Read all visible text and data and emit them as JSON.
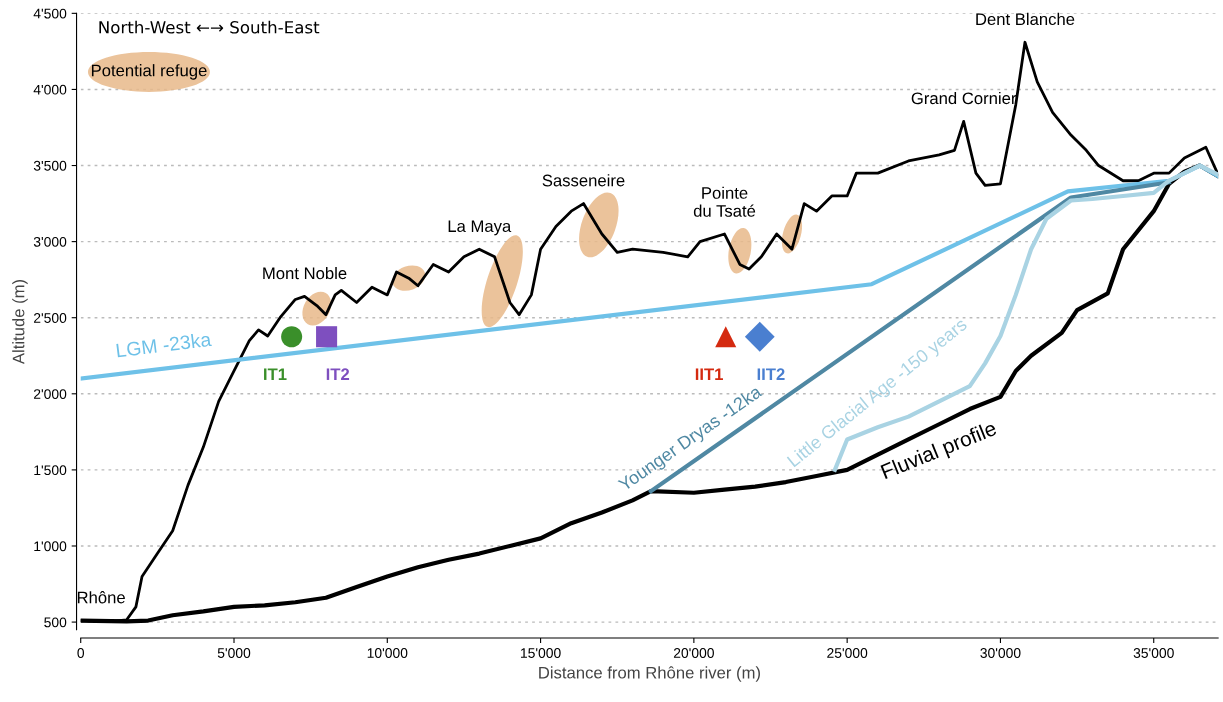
{
  "chart_data": {
    "type": "line",
    "xlabel": "Distance from Rhône river (m)",
    "ylabel": "Altitude (m)",
    "xlim": [
      0,
      37100
    ],
    "ylim": [
      450,
      4500
    ],
    "xticks": [
      0,
      {
        "value": 5000,
        "label": "5'000"
      },
      {
        "value": 10000,
        "label": "10'000"
      },
      {
        "value": 15000,
        "label": "15'000"
      },
      {
        "value": 20000,
        "label": "20'000"
      },
      {
        "value": 25000,
        "label": "25'000"
      },
      {
        "value": 30000,
        "label": "30'000"
      },
      {
        "value": 35000,
        "label": "35'000"
      }
    ],
    "yticks": [
      500,
      {
        "value": 1000,
        "label": "1'000"
      },
      {
        "value": 1500,
        "label": "1'500"
      },
      {
        "value": 2000,
        "label": "2'000"
      },
      {
        "value": 2500,
        "label": "2'500"
      },
      {
        "value": 3000,
        "label": "3'000"
      },
      {
        "value": 3500,
        "label": "3'500"
      },
      {
        "value": 4000,
        "label": "4'000"
      },
      {
        "value": 4500,
        "label": "4'500"
      }
    ],
    "grid": "y",
    "legend": false,
    "series": [
      {
        "color": "#000000",
        "x": [
          0,
          1000,
          1500,
          1800,
          2000,
          2500,
          3000,
          3500,
          4000,
          4500,
          5000,
          5500,
          5800,
          6100,
          6500,
          7000,
          7300,
          7700,
          8000,
          8300,
          8500,
          9000,
          9500,
          10000,
          10300,
          10700,
          11000,
          11500,
          12000,
          12500,
          13000,
          13500,
          14000,
          14300,
          14700,
          15000,
          15500,
          16000,
          16400,
          17000,
          17500,
          18000,
          19000,
          19800,
          20200,
          21000,
          21500,
          21800,
          22200,
          22700,
          23200,
          23600,
          24000,
          24500,
          25000,
          25300,
          26000,
          27000,
          28000,
          28500,
          28800,
          29200,
          29500,
          30000,
          30500,
          30800,
          31200,
          31700,
          32300,
          32800,
          33200,
          34000,
          34500,
          35000,
          35500,
          36000,
          36700,
          37100
        ],
        "values": [
          510,
          505,
          515,
          600,
          800,
          950,
          1100,
          1400,
          1650,
          1950,
          2150,
          2350,
          2420,
          2380,
          2500,
          2620,
          2640,
          2580,
          2520,
          2650,
          2680,
          2600,
          2700,
          2650,
          2800,
          2760,
          2710,
          2850,
          2800,
          2900,
          2950,
          2900,
          2600,
          2520,
          2650,
          2950,
          3100,
          3200,
          3250,
          3050,
          2930,
          2950,
          2930,
          2900,
          3000,
          3050,
          2850,
          2820,
          2900,
          3050,
          2950,
          3250,
          3200,
          3300,
          3300,
          3450,
          3450,
          3530,
          3570,
          3600,
          3790,
          3450,
          3370,
          3380,
          3900,
          4310,
          4050,
          3850,
          3700,
          3600,
          3500,
          3400,
          3400,
          3450,
          3450,
          3550,
          3620,
          3440
        ]
      },
      {
        "name": "Fluvial profile",
        "color": "#000000",
        "x": [
          0,
          1500,
          2200,
          3000,
          4000,
          5000,
          6000,
          7000,
          8000,
          9000,
          10000,
          11000,
          12000,
          13000,
          14000,
          15000,
          16000,
          17000,
          18000,
          18600,
          20000,
          21000,
          22000,
          23000,
          24000,
          25000,
          26000,
          27000,
          28000,
          29000,
          30000,
          30500,
          31000,
          32000,
          32500,
          33500,
          34000,
          35000,
          35500,
          36000,
          36500,
          37100
        ],
        "values": [
          510,
          505,
          510,
          545,
          570,
          600,
          610,
          630,
          660,
          730,
          800,
          860,
          910,
          950,
          1000,
          1050,
          1150,
          1220,
          1300,
          1360,
          1350,
          1370,
          1390,
          1420,
          1460,
          1500,
          1600,
          1700,
          1800,
          1900,
          1980,
          2150,
          2250,
          2400,
          2550,
          2660,
          2950,
          3200,
          3380,
          3460,
          3500,
          3430
        ]
      },
      {
        "name": "LGM -23ka",
        "color": "#6ec1e8",
        "x": [
          0,
          25800,
          32200,
          35500,
          36500,
          37100
        ],
        "values": [
          2100,
          2720,
          3330,
          3400,
          3500,
          3430
        ]
      },
      {
        "name": "Younger Dryas -12ka",
        "color": "#4f88a3",
        "x": [
          18600,
          32300,
          35500
        ],
        "values": [
          1360,
          3290,
          3390
        ]
      },
      {
        "name": "Little Glacial Age -150 years",
        "color": "#a9d3e3",
        "x": [
          24600,
          25000,
          26000,
          27000,
          28000,
          29000,
          29500,
          30000,
          30500,
          31000,
          31500,
          32300,
          33000,
          34000,
          35000,
          35500,
          36500,
          37100
        ],
        "values": [
          1500,
          1700,
          1780,
          1850,
          1950,
          2050,
          2200,
          2380,
          2650,
          2950,
          3150,
          3270,
          3280,
          3300,
          3320,
          3400,
          3500,
          3440
        ]
      },
      {
        "name": "IT1",
        "type": "scatter",
        "marker": "circle",
        "color": "#3a8f2a",
        "x": [
          6880
        ],
        "values": [
          2375
        ]
      },
      {
        "name": "IT2",
        "type": "scatter",
        "marker": "square",
        "color": "#7e4fbf",
        "x": [
          8020
        ],
        "values": [
          2375
        ]
      },
      {
        "name": "IIT1",
        "type": "scatter",
        "marker": "triangle",
        "color": "#d42a10",
        "x": [
          21040
        ],
        "values": [
          2375
        ]
      },
      {
        "name": "IIT2",
        "type": "scatter",
        "marker": "diamond",
        "color": "#4a7fd0",
        "x": [
          22150
        ],
        "values": [
          2375
        ]
      }
    ],
    "annotations": [
      "North-West ←→ South-East",
      "Potential refuge",
      {
        "text": "Rhône",
        "x": 0,
        "y": 510
      },
      {
        "text": "Mont Noble",
        "x": 7300,
        "y": 2640
      },
      {
        "text": "La Maya",
        "x": 13000,
        "y": 2950
      },
      {
        "text": "Sasseneire",
        "x": 16400,
        "y": 3250
      },
      {
        "text": "Pointe\ndu Tsaté",
        "x": 21000,
        "y": 3050
      },
      {
        "text": "Grand Cornier",
        "x": 28800,
        "y": 3790
      },
      {
        "text": "Dent Blanche",
        "x": 30800,
        "y": 4310
      }
    ]
  }
}
